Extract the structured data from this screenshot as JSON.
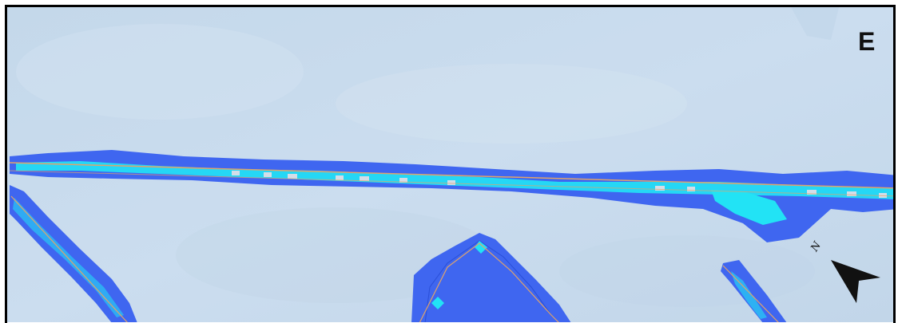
{
  "map": {
    "panel_label": "E",
    "north_arrow": {
      "label": "N",
      "icon": "north-arrow-icon"
    },
    "colors": {
      "basemap": "#c8dced",
      "border": "#000000",
      "band_outer": "#3f66f0",
      "band_core": "#22e3f5",
      "band_gaps": "#d3dde8",
      "track_line": "#e0a36b"
    }
  }
}
